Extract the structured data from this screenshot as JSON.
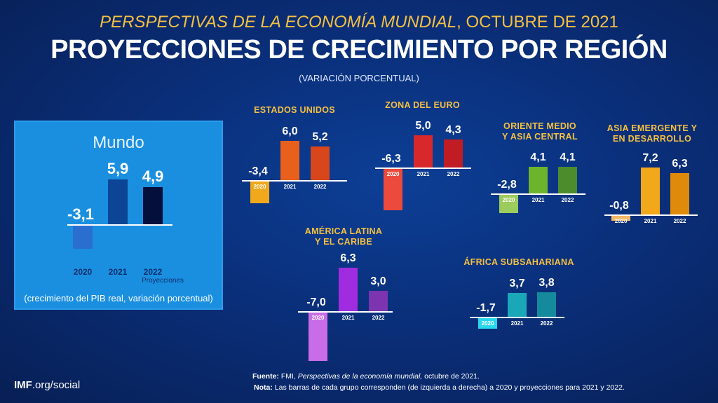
{
  "header": {
    "supertitle_italic": "PERSPECTIVAS DE LA ECONOMÍA MUNDIAL",
    "supertitle_rest": ", OCTUBRE DE 2021",
    "title": "PROYECCIONES DE CRECIMIENTO POR REGIÓN",
    "subtitle": "(VARIACIÓN PORCENTUAL)"
  },
  "chart_data": [
    {
      "type": "bar",
      "title": "Mundo",
      "categories": [
        "2020",
        "2021",
        "2022"
      ],
      "values": [
        -3.1,
        5.9,
        4.9
      ],
      "colors": [
        "#2a6fd0",
        "#0c4596",
        "#050f3c"
      ],
      "projection_label": "Proyecciones",
      "note": "(crecimiento del PIB real, variación porcentual)"
    },
    {
      "type": "bar",
      "title": "ESTADOS UNIDOS",
      "categories": [
        "2020",
        "2021",
        "2022"
      ],
      "values": [
        -3.4,
        6.0,
        5.2
      ],
      "colors": [
        "#f0a81c",
        "#e8601c",
        "#d8461c"
      ]
    },
    {
      "type": "bar",
      "title": "ZONA DEL EURO",
      "categories": [
        "2020",
        "2021",
        "2022"
      ],
      "values": [
        -6.3,
        5.0,
        4.3
      ],
      "colors": [
        "#ec4a3c",
        "#d8282c",
        "#c01c24"
      ]
    },
    {
      "type": "bar",
      "title": "ORIENTE MEDIO\nY ASIA CENTRAL",
      "categories": [
        "2020",
        "2021",
        "2022"
      ],
      "values": [
        -2.8,
        4.1,
        4.1
      ],
      "colors": [
        "#9ccc5c",
        "#6cb42c",
        "#4c8c2c"
      ]
    },
    {
      "type": "bar",
      "title": "ASIA EMERGENTE Y\nEN DESARROLLO",
      "categories": [
        "2020",
        "2021",
        "2022"
      ],
      "values": [
        -0.8,
        7.2,
        6.3
      ],
      "colors": [
        "#f5b866",
        "#f2a81a",
        "#e08a0c"
      ]
    },
    {
      "type": "bar",
      "title": "AMÉRICA LATINA\nY EL CARIBE",
      "categories": [
        "2020",
        "2021",
        "2022"
      ],
      "values": [
        -7.0,
        6.3,
        3.0
      ],
      "colors": [
        "#c86ce8",
        "#a02ce0",
        "#7c34b0"
      ]
    },
    {
      "type": "bar",
      "title": "ÁFRICA SUBSAHARIANA",
      "categories": [
        "2020",
        "2021",
        "2022"
      ],
      "values": [
        -1.7,
        3.7,
        3.8
      ],
      "colors": [
        "#2ad8ec",
        "#1aa8b8",
        "#148a9c"
      ]
    }
  ],
  "footer": {
    "fuente_label": "Fuente:",
    "fuente_text1": " FMI, ",
    "fuente_italic": "Perspectivas de la economía mundial,",
    "fuente_text2": " octubre de 2021.",
    "nota_label": "Nota:",
    "nota_text": "  Las barras de cada grupo corresponden (de izquierda a derecha) a 2020 y proyecciones para 2021 y 2022.",
    "imf_bold": "IMF",
    "imf_rest": ".org/social"
  }
}
